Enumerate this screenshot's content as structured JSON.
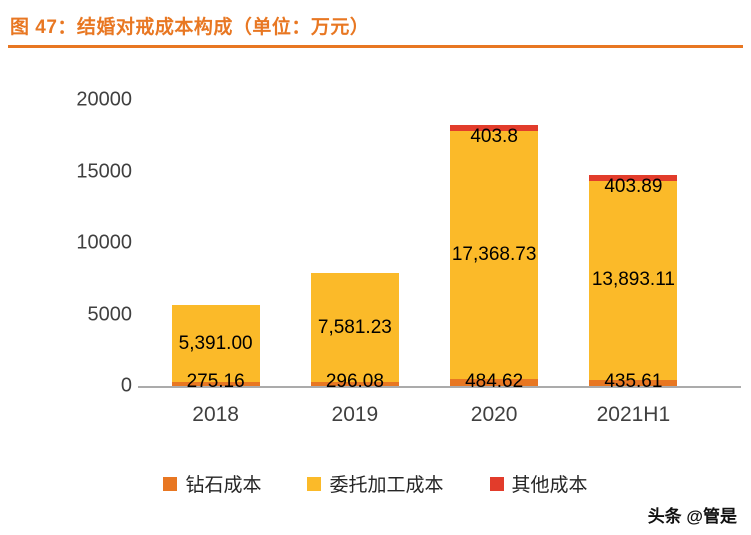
{
  "figure": {
    "title": "图 47：结婚对戒成本构成（单位：万元）",
    "watermark": "头条 @管是",
    "accent_color": "#E87722"
  },
  "chart_data": {
    "type": "bar",
    "stacked": true,
    "title": "结婚对戒成本构成",
    "unit": "万元",
    "categories": [
      "2018",
      "2019",
      "2020",
      "2021H1"
    ],
    "series": [
      {
        "name": "钻石成本",
        "color": "#E87722",
        "values": [
          275.16,
          296.08,
          484.62,
          435.61
        ],
        "labels": [
          "275.16",
          "296.08",
          "484.62",
          "435.61"
        ]
      },
      {
        "name": "委托加工成本",
        "color": "#FBBA29",
        "values": [
          5391.0,
          7581.23,
          17368.73,
          13893.11
        ],
        "labels": [
          "5,391.00",
          "7,581.23",
          "17,368.73",
          "13,893.11"
        ]
      },
      {
        "name": "其他成本",
        "color": "#E23C2B",
        "values": [
          null,
          null,
          403.8,
          403.89
        ],
        "labels": [
          null,
          null,
          "403.8",
          "403.89"
        ]
      }
    ],
    "y_ticks": [
      0,
      5000,
      10000,
      15000,
      20000
    ],
    "ylim": [
      0,
      20000
    ],
    "grid": false,
    "legend_position": "bottom"
  }
}
